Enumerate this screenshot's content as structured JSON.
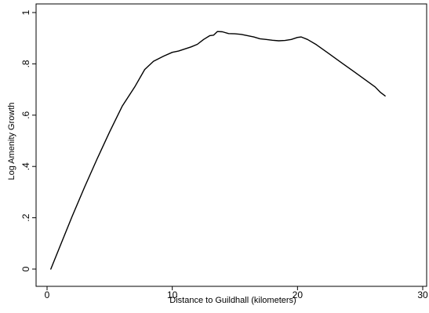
{
  "chart_data": {
    "type": "line",
    "title": "",
    "xlabel": "Distance to Guildhall (kilometers)",
    "ylabel": "Log Amenity Growth",
    "xlim": [
      0,
      30
    ],
    "ylim": [
      0,
      1
    ],
    "xticks": [
      0,
      10,
      20,
      30
    ],
    "xtick_labels": [
      "0",
      "10",
      "20",
      "30"
    ],
    "yticks": [
      0,
      0.2,
      0.4,
      0.6,
      0.8,
      1
    ],
    "ytick_labels": [
      "0",
      ".2",
      ".4",
      ".6",
      ".8",
      "1"
    ],
    "grid": false,
    "legend": "none",
    "series": [
      {
        "color": "#000000",
        "x": [
          0.3,
          1,
          2,
          3,
          4,
          5,
          6,
          7,
          7.8,
          8.5,
          9.3,
          10,
          10.5,
          11,
          11.5,
          12,
          12.5,
          13,
          13.3,
          13.6,
          14,
          14.5,
          15,
          15.5,
          16,
          16.5,
          17,
          17.5,
          18,
          18.5,
          19,
          19.5,
          20,
          20.3,
          20.8,
          21.5,
          22.5,
          23.5,
          24.5,
          25.5,
          26.2,
          26.6,
          27
        ],
        "y": [
          0.0,
          0.085,
          0.205,
          0.32,
          0.43,
          0.535,
          0.635,
          0.71,
          0.778,
          0.81,
          0.83,
          0.845,
          0.85,
          0.858,
          0.866,
          0.876,
          0.895,
          0.91,
          0.912,
          0.926,
          0.925,
          0.918,
          0.917,
          0.915,
          0.91,
          0.905,
          0.898,
          0.895,
          0.892,
          0.89,
          0.891,
          0.895,
          0.903,
          0.905,
          0.895,
          0.875,
          0.84,
          0.805,
          0.77,
          0.735,
          0.71,
          0.69,
          0.675
        ]
      }
    ]
  }
}
